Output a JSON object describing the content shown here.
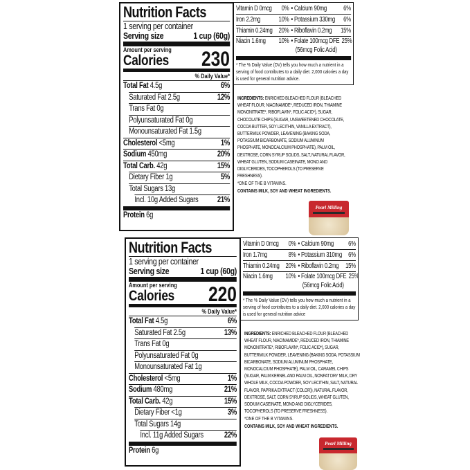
{
  "labels": [
    {
      "title": "Nutrition Facts",
      "servings": "1 serving per container",
      "serving_size_label": "Serving size",
      "serving_size_value": "1 cup (60g)",
      "amount_per_serving": "Amount per serving",
      "calories_label": "Calories",
      "calories": "230",
      "daily_value_header": "% Daily Value*",
      "rows": [
        {
          "label": "Total Fat",
          "amount": "4.5g",
          "dv": "6%",
          "bold": true,
          "indent": 0
        },
        {
          "label": "Saturated Fat",
          "amount": "2.5g",
          "dv": "12%",
          "bold": false,
          "indent": 1
        },
        {
          "label": "Trans Fat",
          "amount": "0g",
          "dv": "",
          "bold": false,
          "indent": 1
        },
        {
          "label": "Polyunsaturated Fat",
          "amount": "0g",
          "dv": "",
          "bold": false,
          "indent": 1
        },
        {
          "label": "Monounsaturated Fat",
          "amount": "1.5g",
          "dv": "",
          "bold": false,
          "indent": 1
        },
        {
          "label": "Cholesterol",
          "amount": "<5mg",
          "dv": "1%",
          "bold": true,
          "indent": 0
        },
        {
          "label": "Sodium",
          "amount": "450mg",
          "dv": "20%",
          "bold": true,
          "indent": 0
        },
        {
          "label": "Total Carb.",
          "amount": "42g",
          "dv": "15%",
          "bold": true,
          "indent": 0
        },
        {
          "label": "Dietary Fiber",
          "amount": "1g",
          "dv": "5%",
          "bold": false,
          "indent": 1
        },
        {
          "label": "Total Sugars",
          "amount": "13g",
          "dv": "",
          "bold": false,
          "indent": 1
        },
        {
          "label": "Incl. 10g Added Sugars",
          "amount": "",
          "dv": "21%",
          "bold": false,
          "indent": 2
        },
        {
          "label": "Protein",
          "amount": "6g",
          "dv": "",
          "bold": true,
          "indent": 0,
          "protein": true
        }
      ],
      "vitamins": [
        [
          "Vitamin D 0mcg",
          "0%",
          "Calcium 90mg",
          "6%"
        ],
        [
          "Iron 2.2mg",
          "10%",
          "Potassium 330mg",
          "6%"
        ],
        [
          "Thiamin 0.24mg",
          "20%",
          "Riboflavin 0.2mg",
          "15%"
        ],
        [
          "Niacin 1.6mg",
          "10%",
          "Folate 100mcg DFE",
          "25%"
        ]
      ],
      "folic": "(56mcg Folic Acid)",
      "footnote": "* The % Daily Value (DV) tells you how much a nutrient in a serving of food contributes to a daily diet. 2,000 calories a day is used for general nutrition advice.",
      "ingredients_label": "INGREDIENTS:",
      "ingredients": "ENRICHED BLEACHED FLOUR (BLEACHED WHEAT FLOUR, NIACINAMIDE*, REDUCED IRON, THIAMINE MONONITRATE*, RIBOFLAVIN*, FOLIC ACID*), SUGAR, CHOCOLATE CHIPS (SUGAR, UNSWEETENED CHOCOLATE, COCOA BUTTER, SOY LECITHIN, VANILLA EXTRACT), BUTTERMILK POWDER, LEAVENING (BAKING SODA, POTASSIUM BICARBONATE, SODIUM ALUMINUM PHOSPHATE, MONOCALCIUM PHOSPHATE), PALM OIL, DEXTROSE, CORN SYRUP SOLIDS, SALT, NATURAL FLAVOR, WHEAT GLUTEN, SODIUM CASEINATE, MONO AND DIGLYCERIDES, TOCOPHEROLS (TO PRESERVE FRESHNESS).",
      "vitamin_note": "*ONE OF THE B VITAMINS.",
      "allergens": "CONTAINS MILK, SOY AND WHEAT INGREDIENTS.",
      "product_logo": "Pearl Milling"
    },
    {
      "title": "Nutrition Facts",
      "servings": "1 serving per container",
      "serving_size_label": "Serving size",
      "serving_size_value": "1 cup (60g)",
      "amount_per_serving": "Amount per serving",
      "calories_label": "Calories",
      "calories": "220",
      "daily_value_header": "% Daily Value*",
      "rows": [
        {
          "label": "Total Fat",
          "amount": "4.5g",
          "dv": "6%",
          "bold": true,
          "indent": 0
        },
        {
          "label": "Saturated Fat",
          "amount": "2.5g",
          "dv": "13%",
          "bold": false,
          "indent": 1
        },
        {
          "label": "Trans Fat",
          "amount": "0g",
          "dv": "",
          "bold": false,
          "indent": 1
        },
        {
          "label": "Polyunsaturated Fat",
          "amount": "0g",
          "dv": "",
          "bold": false,
          "indent": 1
        },
        {
          "label": "Monounsaturated Fat",
          "amount": "1g",
          "dv": "",
          "bold": false,
          "indent": 1
        },
        {
          "label": "Cholesterol",
          "amount": "<5mg",
          "dv": "1%",
          "bold": true,
          "indent": 0
        },
        {
          "label": "Sodium",
          "amount": "480mg",
          "dv": "21%",
          "bold": true,
          "indent": 0
        },
        {
          "label": "Total Carb.",
          "amount": "42g",
          "dv": "15%",
          "bold": true,
          "indent": 0
        },
        {
          "label": "Dietary Fiber",
          "amount": "<1g",
          "dv": "3%",
          "bold": false,
          "indent": 1
        },
        {
          "label": "Total Sugars",
          "amount": "14g",
          "dv": "",
          "bold": false,
          "indent": 1
        },
        {
          "label": "Incl. 11g Added Sugars",
          "amount": "",
          "dv": "22%",
          "bold": false,
          "indent": 2
        },
        {
          "label": "Protein",
          "amount": "6g",
          "dv": "",
          "bold": true,
          "indent": 0,
          "protein": true
        }
      ],
      "vitamins": [
        [
          "Vitamin D 0mcg",
          "0%",
          "Calcium 90mg",
          "6%"
        ],
        [
          "Iron 1.7mg",
          "8%",
          "Potassium 310mg",
          "6%"
        ],
        [
          "Thiamin 0.24mg",
          "20%",
          "Riboflavin 0.2mg",
          "15%"
        ],
        [
          "Niacin 1.6mg",
          "10%",
          "Folate 100mcg DFE",
          "25%"
        ]
      ],
      "folic": "(56mcg Folic Acid)",
      "footnote": "* The % Daily Value (DV) tells you how much a nutrient in a serving of food contributes to a daily diet. 2,000 calories a day is used for general nutrition advice",
      "ingredients_label": "INGREDIENTS:",
      "ingredients": "ENRICHED BLEACHED FLOUR (BLEACHED WHEAT FLOUR, NIACINAMIDE*, REDUCED IRON, THIAMINE MONONITRATE*, RIBOFLAVIN*, FOLIC ACID*), SUGAR, BUTTERMILK POWDER, LEAVENING (BAKING SODA, POTASSIUM BICARBONATE, SODIUM ALUMINUM PHOSPHATE, MONOCALCIUM PHOSPHATE), PALM OIL, CARAMEL CHIPS (SUGAR, PALM KERNEL AND PALM OIL, NONFAT DRY MILK, DRY WHOLE MILK, COCOA POWDER, SOY LECITHIN, SALT, NATURAL FLAVOR, PAPRIKA EXTRACT (COLOR)), NATURAL FLAVOR, DEXTROSE, SALT, CORN SYRUP SOLIDS, WHEAT GLUTEN, SODIUM CASEINATE, MONO AND DIGLYCERIDES, TOCOPHEROLS (TO PRESERVE FRESHNESS).",
      "vitamin_note": "*ONE OF THE B VITAMINS.",
      "allergens": "CONTAINS MILK, SOY AND WHEAT INGREDIENTS.",
      "product_logo": "Pearl Milling"
    }
  ],
  "colors": {
    "ink": "#111111",
    "brand_red": "#c8282e"
  }
}
